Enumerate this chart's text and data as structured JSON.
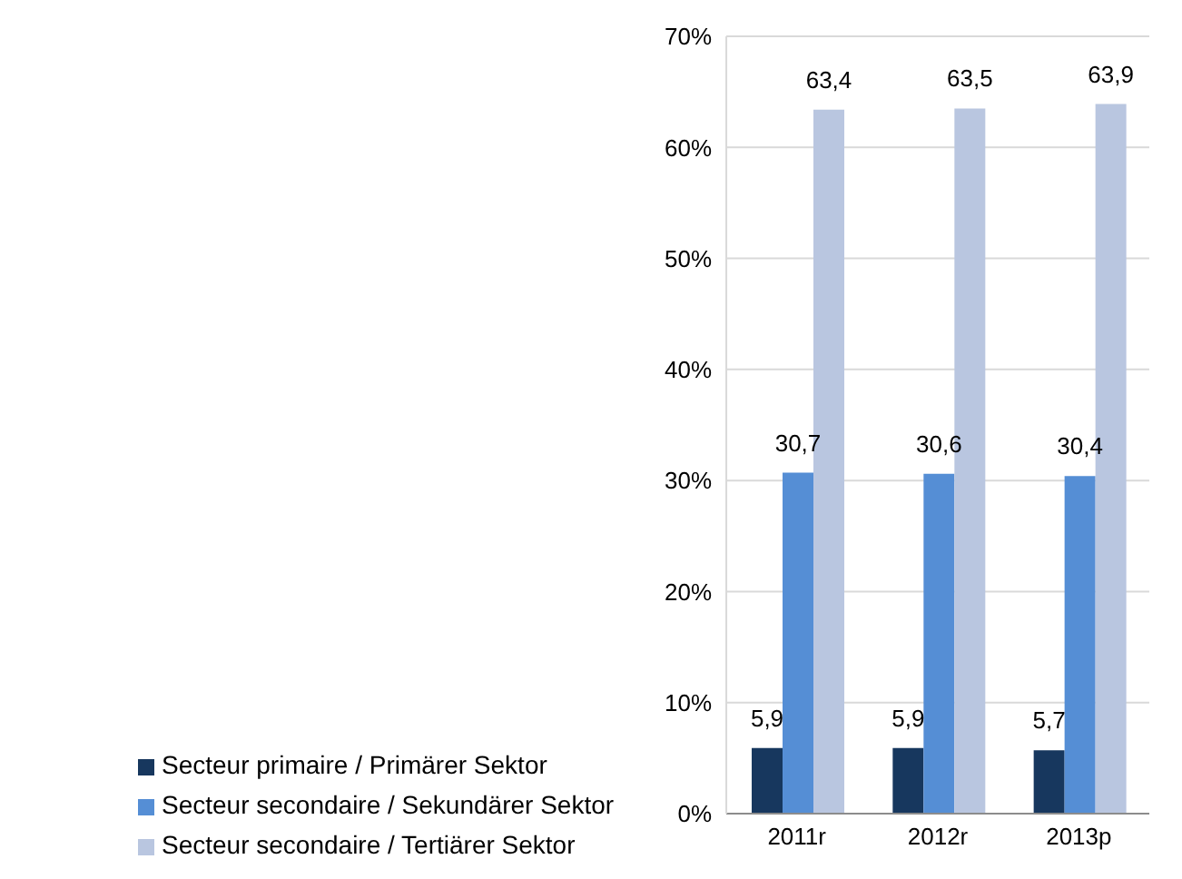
{
  "chart_data": {
    "type": "bar",
    "categories": [
      "2011r",
      "2012r",
      "2013p"
    ],
    "series": [
      {
        "name": "Secteur primaire / Primärer Sektor",
        "color": "#17375e",
        "values": [
          5.9,
          5.9,
          5.7
        ],
        "value_labels": [
          "5,9",
          "5,9",
          "5,7"
        ]
      },
      {
        "name": "Secteur secondaire / Sekundärer Sektor",
        "color": "#558ed5",
        "values": [
          30.7,
          30.6,
          30.4
        ],
        "value_labels": [
          "30,7",
          "30,6",
          "30,4"
        ]
      },
      {
        "name": "Secteur secondaire / Tertiärer Sektor",
        "color": "#b9c6e0",
        "values": [
          63.4,
          63.5,
          63.9
        ],
        "value_labels": [
          "63,4",
          "63,5",
          "63,9"
        ]
      }
    ],
    "ylim": [
      0,
      70
    ],
    "yticks": [
      {
        "value": 0,
        "label": "0%"
      },
      {
        "value": 10,
        "label": "10%"
      },
      {
        "value": 20,
        "label": "20%"
      },
      {
        "value": 30,
        "label": "30%"
      },
      {
        "value": 40,
        "label": "40%"
      },
      {
        "value": 50,
        "label": "50%"
      },
      {
        "value": 60,
        "label": "60%"
      },
      {
        "value": 70,
        "label": "70%"
      }
    ],
    "grid": "y",
    "legend": "bottom"
  }
}
